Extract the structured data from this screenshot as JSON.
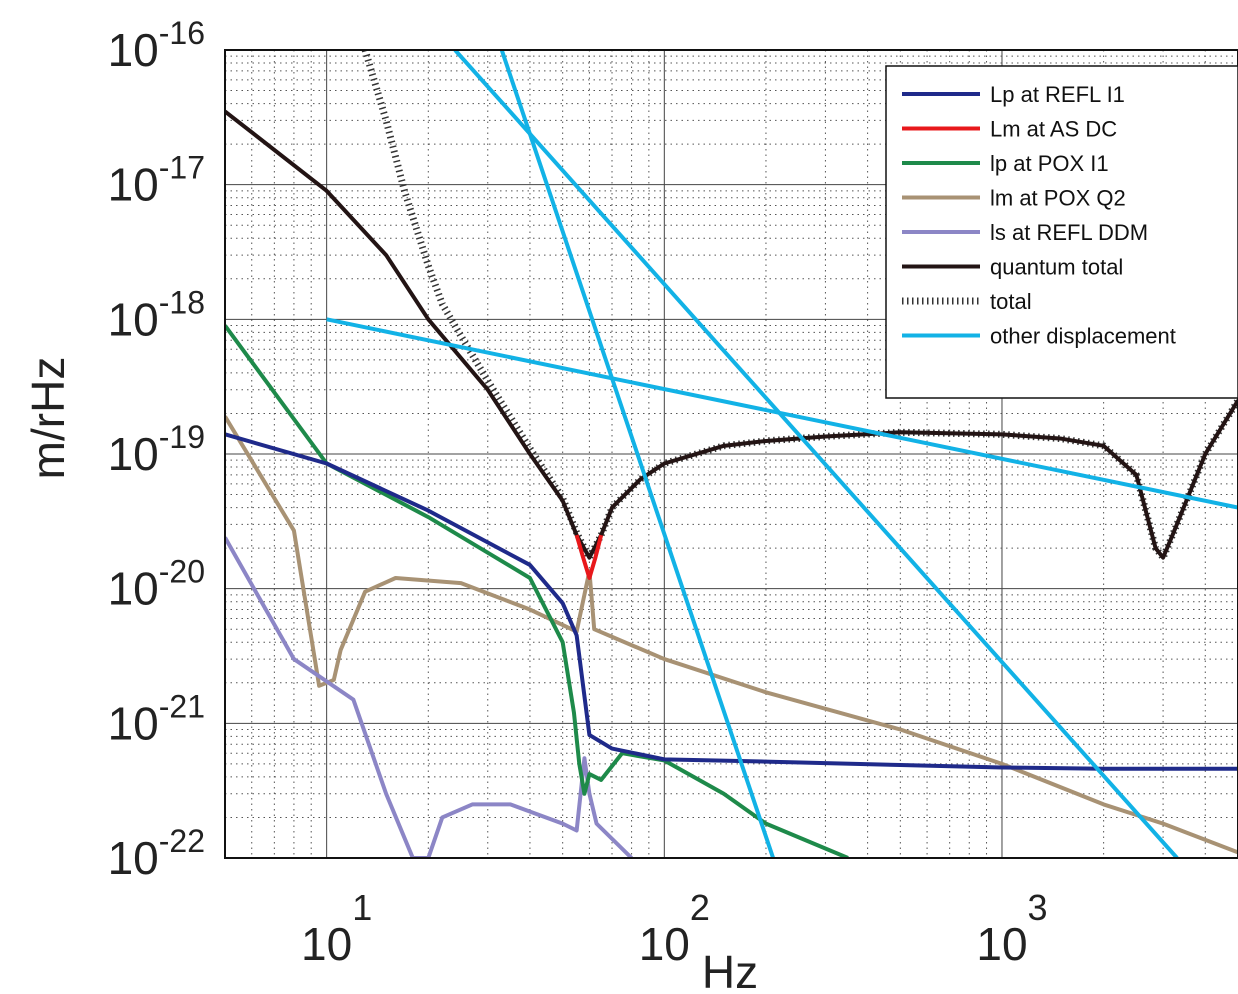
{
  "chart_data": {
    "type": "line",
    "xlabel": "Hz",
    "ylabel": "m/rHz",
    "xscale": "log",
    "yscale": "log",
    "xlim": [
      5,
      5000
    ],
    "ylim": [
      1e-22,
      1e-16
    ],
    "grid": true,
    "legend_position": "top-right",
    "x_tick_labels": [
      {
        "value": 10,
        "base": "10",
        "exp": "1"
      },
      {
        "value": 100,
        "base": "10",
        "exp": "2"
      },
      {
        "value": 1000,
        "base": "10",
        "exp": "3"
      }
    ],
    "y_tick_labels": [
      {
        "value": 1e-16,
        "base": "10",
        "exp": "-16"
      },
      {
        "value": 1e-17,
        "base": "10",
        "exp": "-17"
      },
      {
        "value": 1e-18,
        "base": "10",
        "exp": "-18"
      },
      {
        "value": 1e-19,
        "base": "10",
        "exp": "-19"
      },
      {
        "value": 1e-20,
        "base": "10",
        "exp": "-20"
      },
      {
        "value": 1e-21,
        "base": "10",
        "exp": "-21"
      },
      {
        "value": 1e-22,
        "base": "10",
        "exp": "-22"
      }
    ],
    "series": [
      {
        "name": "Lp at REFL I1",
        "color": "#1f2a8a",
        "style": "solid",
        "x": [
          5,
          10,
          20,
          40,
          50,
          55,
          60,
          70,
          100,
          200,
          500,
          1000,
          2000,
          5000
        ],
        "y": [
          1.4e-19,
          8.5e-20,
          3.8e-20,
          1.5e-20,
          7.8e-21,
          4.5e-21,
          8.2e-22,
          6.5e-22,
          5.4e-22,
          5.2e-22,
          4.9e-22,
          4.7e-22,
          4.6e-22,
          4.6e-22
        ]
      },
      {
        "name": "Lm at AS DC",
        "color": "#e8181b",
        "style": "solid",
        "x": [
          55,
          57.5,
          60,
          62.5,
          65
        ],
        "y": [
          2.5e-20,
          1.7e-20,
          1.2e-20,
          1.7e-20,
          2.5e-20
        ]
      },
      {
        "name": "lp at POX I1",
        "color": "#1e8a4a",
        "style": "solid",
        "x": [
          5,
          10,
          20,
          40,
          50,
          54,
          56,
          58,
          60,
          65,
          75,
          100,
          150,
          200,
          350
        ],
        "y": [
          9e-19,
          8.5e-20,
          3.4e-20,
          1.2e-20,
          4e-21,
          1.2e-21,
          5e-22,
          3e-22,
          4.2e-22,
          3.8e-22,
          6e-22,
          5.3e-22,
          3e-22,
          1.8e-22,
          1e-22
        ]
      },
      {
        "name": "lm at POX Q2",
        "color": "#a89274",
        "style": "solid",
        "x": [
          5,
          8,
          9.5,
          10.5,
          11,
          13,
          16,
          25,
          40,
          55,
          60,
          62,
          100,
          200,
          500,
          1000,
          2000,
          3000,
          5000
        ],
        "y": [
          1.9e-19,
          2.7e-20,
          1.9e-21,
          2.1e-21,
          3.5e-21,
          9.5e-21,
          1.2e-20,
          1.1e-20,
          7e-21,
          4.8e-21,
          1.35e-20,
          5e-21,
          3e-21,
          1.7e-21,
          9e-22,
          5e-22,
          2.5e-22,
          1.8e-22,
          1.1e-22
        ]
      },
      {
        "name": "ls at REFL DDM",
        "color": "#8c86c6",
        "style": "solid",
        "x": [
          5,
          8,
          12,
          15,
          18,
          20,
          22,
          27,
          35,
          50,
          55,
          58,
          60,
          63,
          80
        ],
        "y": [
          2.4e-20,
          3e-21,
          1.5e-21,
          3e-22,
          1e-22,
          1e-22,
          2e-22,
          2.5e-22,
          2.5e-22,
          1.8e-22,
          1.6e-22,
          5.5e-22,
          3e-22,
          1.8e-22,
          1e-22
        ]
      },
      {
        "name": "quantum total",
        "color": "#231414",
        "style": "solid",
        "x": [
          5,
          10,
          15,
          20,
          30,
          40,
          50,
          55,
          60,
          65,
          70,
          85,
          100,
          150,
          200,
          300,
          500,
          1000,
          1500,
          2000,
          2500,
          2850,
          3000,
          3200,
          4000,
          5000
        ],
        "y": [
          3.5e-17,
          9e-18,
          3e-18,
          1e-18,
          3e-19,
          1e-19,
          4.5e-20,
          2.5e-20,
          1.7e-20,
          2.5e-20,
          4e-20,
          6.5e-20,
          8.5e-20,
          1.15e-19,
          1.25e-19,
          1.35e-19,
          1.45e-19,
          1.4e-19,
          1.3e-19,
          1.15e-19,
          7e-20,
          2e-20,
          1.7e-20,
          2.5e-20,
          1e-19,
          2.5e-19
        ]
      },
      {
        "name": "total",
        "color": "#333333",
        "style": "dotted",
        "x": [
          13,
          15,
          17,
          20,
          22,
          25,
          30,
          40,
          50,
          55,
          60,
          65,
          70,
          85,
          100,
          150,
          200,
          300,
          500,
          1000,
          1500,
          2000,
          2500,
          2850,
          3000,
          3200,
          4000,
          5000
        ],
        "y": [
          1e-16,
          3e-17,
          9e-18,
          2.5e-18,
          1.3e-18,
          7.5e-19,
          3.5e-19,
          1.1e-19,
          4.7e-20,
          2.6e-20,
          1.7e-20,
          2.5e-20,
          4e-20,
          6.5e-20,
          8.5e-20,
          1.15e-19,
          1.25e-19,
          1.35e-19,
          1.45e-19,
          1.4e-19,
          1.3e-19,
          1.15e-19,
          7e-20,
          2e-20,
          1.7e-20,
          2.5e-20,
          1e-19,
          2.5e-19
        ]
      },
      {
        "name": "other displacement",
        "color": "#12b2e6",
        "style": "solid",
        "segments": [
          {
            "x": [
              10,
              5000
            ],
            "y": [
              1e-18,
              4e-20
            ]
          },
          {
            "x": [
              24,
              3300
            ],
            "y": [
              1e-16,
              1e-22
            ]
          },
          {
            "x": [
              33,
              210
            ],
            "y": [
              1e-16,
              1e-22
            ]
          }
        ]
      }
    ]
  }
}
